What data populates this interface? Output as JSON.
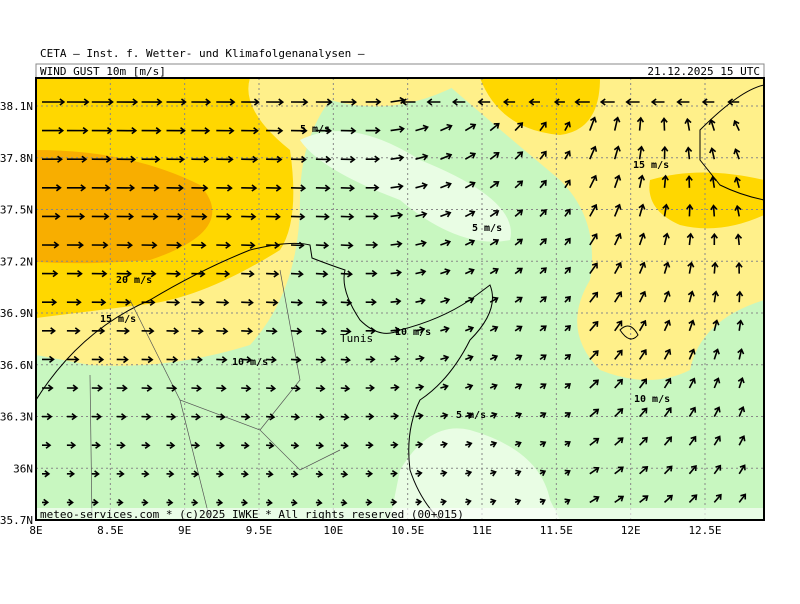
{
  "header": {
    "title": "CETA — Inst. f. Wetter- und Klimafolgenanalysen —",
    "parameter": "WIND_GUST_10m_[m/s]",
    "valid": "21.12.2025 15 UTC"
  },
  "map": {
    "lon_ticks": [
      "8E",
      "8.5E",
      "9E",
      "9.5E",
      "10E",
      "10.5E",
      "11E",
      "11.5E",
      "12E",
      "12.5E"
    ],
    "lat_ticks": [
      "38.1N",
      "37.8N",
      "37.5N",
      "37.2N",
      "36.9N",
      "36.6N",
      "36.3N",
      "36N",
      "35.7N"
    ],
    "contour_labels": [
      "5 m/s",
      "15 m/s",
      "5 m/s",
      "20 m/s",
      "15 m/s",
      "10 m/s",
      "10 m/s",
      "5 m/s",
      "10 m/s"
    ],
    "city": "Tunis"
  },
  "footer": "meteo-services.com * (c)2025 IWKE * All rights reserved (00+015)"
}
